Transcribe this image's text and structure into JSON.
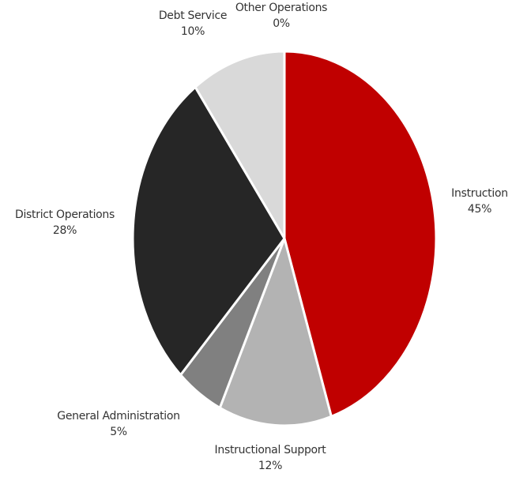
{
  "chart_data": {
    "type": "pie",
    "categories": [
      "Instruction",
      "Instructional Support",
      "General Administration",
      "District Operations",
      "Debt Service",
      "Other Operations"
    ],
    "values": [
      45,
      12,
      5,
      28,
      10,
      0
    ],
    "value_labels": [
      "45%",
      "12%",
      "5%",
      "28%",
      "10%",
      "0%"
    ],
    "colors": [
      "#c00000",
      "#b3b3b3",
      "#808080",
      "#262626",
      "#d9d9d9",
      "#ffffff"
    ]
  }
}
